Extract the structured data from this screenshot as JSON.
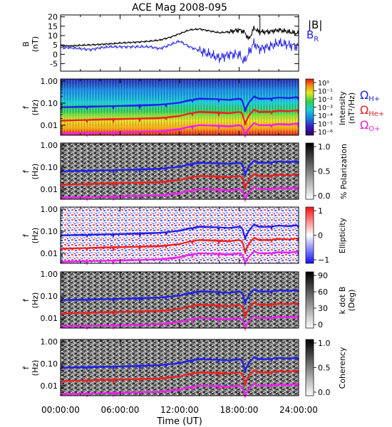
{
  "chart_data": {
    "title": "ACE Mag 2008-095",
    "x_axis": {
      "label": "Time (UT)",
      "range": [
        0,
        24
      ],
      "ticks": [
        0,
        6,
        12,
        18,
        24
      ],
      "tick_labels": [
        "00:00:00",
        "06:00:00",
        "12:00:00",
        "18:00:00",
        "24:00:00"
      ]
    },
    "panels": [
      {
        "type": "line",
        "ylabel": "B\n(nT)",
        "ylim": [
          -9,
          21
        ],
        "yticks": [
          -5,
          0,
          5,
          10,
          15,
          20
        ],
        "legend": [
          {
            "label": "|B|",
            "color": "#000000"
          },
          {
            "label": "B",
            "sub": "R",
            "color": "#2222dd"
          }
        ],
        "series": [
          {
            "name": "|B|",
            "color": "#000000",
            "x": [
              0,
              1,
              2,
              3,
              4,
              5,
              6,
              7,
              8,
              9,
              10,
              11,
              12,
              13,
              14,
              15,
              16,
              17,
              18,
              18.5,
              19,
              19.5,
              20,
              21,
              22,
              23,
              24
            ],
            "y": [
              4.5,
              4.5,
              4.8,
              5,
              5.3,
              5.6,
              6,
              6.3,
              6.6,
              7,
              7.6,
              9,
              11,
              13,
              13.5,
              12.5,
              11.5,
              12,
              13,
              12,
              8,
              14,
              12,
              12,
              13,
              12,
              11
            ]
          },
          {
            "name": "B_R",
            "color": "#2222dd",
            "x": [
              0,
              1,
              2,
              3,
              4,
              5,
              6,
              7,
              8,
              9,
              10,
              11,
              12,
              13,
              14,
              15,
              16,
              17,
              18,
              18.5,
              19,
              19.5,
              20,
              21,
              22,
              23,
              24
            ],
            "y": [
              3.5,
              3.5,
              3,
              2.5,
              3.5,
              4,
              4,
              4,
              4,
              4,
              3,
              5,
              7,
              4,
              2,
              0,
              -2,
              0,
              0,
              -4,
              1,
              6,
              3,
              4,
              6,
              5,
              4
            ]
          }
        ]
      },
      {
        "type": "heatmap",
        "ylabel": "f\n(Hz)",
        "colorbar": {
          "label": "Intensity\n(nT²/Hz)",
          "tick_labels": [
            "10⁰",
            "10⁻¹",
            "10⁻²",
            "10⁻³",
            "10⁻⁴",
            "10⁻⁵",
            "10⁻⁶"
          ],
          "scale": "rainbow"
        },
        "legend": [
          {
            "label": "Ω",
            "sub": "H+",
            "color": "#2222dd"
          },
          {
            "label": "Ω",
            "sub": "He+",
            "color": "#dd2222"
          },
          {
            "label": "Ω",
            "sub": "O+",
            "color": "#dd22dd"
          }
        ]
      },
      {
        "type": "heatmap",
        "ylabel": "f\n(Hz)",
        "colorbar": {
          "label": "% Polarization",
          "tick_labels": [
            "1.0",
            "0.5",
            "0.0"
          ],
          "scale": "gray"
        }
      },
      {
        "type": "heatmap",
        "ylabel": "f\n(Hz)",
        "colorbar": {
          "label": "Ellipticity",
          "tick_labels": [
            "1",
            "0",
            "−1"
          ],
          "scale": "diverging"
        }
      },
      {
        "type": "heatmap",
        "ylabel": "f\n(Hz)",
        "colorbar": {
          "label": "k dot B\n(Deg)",
          "tick_labels": [
            "90",
            "60",
            "30",
            "0"
          ],
          "scale": "gray"
        }
      },
      {
        "type": "heatmap",
        "ylabel": "f\n(Hz)",
        "colorbar": {
          "label": "Coherency",
          "tick_labels": [
            "1.0",
            "0.5",
            "0.0"
          ],
          "scale": "gray"
        }
      }
    ],
    "frequency_axis": {
      "scale": "log",
      "range": [
        0.0035,
        1.25
      ],
      "ticks": [
        1.0,
        0.1,
        0.01
      ],
      "tick_labels": [
        "1.00",
        "0.10",
        "0.01"
      ]
    },
    "cyclotron_lines": [
      {
        "name": "Ω_H+",
        "color": "#2020ee",
        "x": [
          0,
          2,
          4,
          6,
          8,
          10,
          12,
          13,
          14,
          16,
          17,
          18,
          18.3,
          18.6,
          19,
          19.5,
          20,
          21,
          22,
          23,
          24
        ],
        "y": [
          0.065,
          0.068,
          0.071,
          0.075,
          0.079,
          0.085,
          0.105,
          0.135,
          0.16,
          0.15,
          0.14,
          0.16,
          0.14,
          0.05,
          0.11,
          0.2,
          0.16,
          0.16,
          0.18,
          0.17,
          0.19
        ]
      },
      {
        "name": "Ω_He+",
        "color": "#ee2020",
        "x": [
          0,
          2,
          4,
          6,
          8,
          10,
          12,
          13,
          14,
          16,
          17,
          18,
          18.3,
          18.6,
          19,
          19.5,
          20,
          21,
          22,
          23,
          24
        ],
        "y": [
          0.016,
          0.017,
          0.018,
          0.019,
          0.02,
          0.021,
          0.026,
          0.034,
          0.04,
          0.037,
          0.035,
          0.04,
          0.035,
          0.012,
          0.028,
          0.05,
          0.04,
          0.04,
          0.045,
          0.043,
          0.048
        ]
      },
      {
        "name": "Ω_O+",
        "color": "#ee20ee",
        "x": [
          0,
          2,
          4,
          6,
          8,
          10,
          12,
          13,
          14,
          16,
          17,
          18,
          18.3,
          18.6,
          19,
          19.5,
          20,
          21,
          22,
          23,
          24
        ],
        "y": [
          0.0041,
          0.0043,
          0.0045,
          0.0047,
          0.005,
          0.0053,
          0.0066,
          0.0085,
          0.01,
          0.0094,
          0.0088,
          0.01,
          0.0088,
          0.004,
          0.007,
          0.0125,
          0.01,
          0.01,
          0.0112,
          0.0107,
          0.012
        ]
      }
    ]
  },
  "colors": {
    "axis": "#000000",
    "H_plus": "#2020ee",
    "He_plus": "#ee2020",
    "O_plus": "#ee20ee",
    "B_total": "#000000",
    "B_R": "#2222dd"
  }
}
